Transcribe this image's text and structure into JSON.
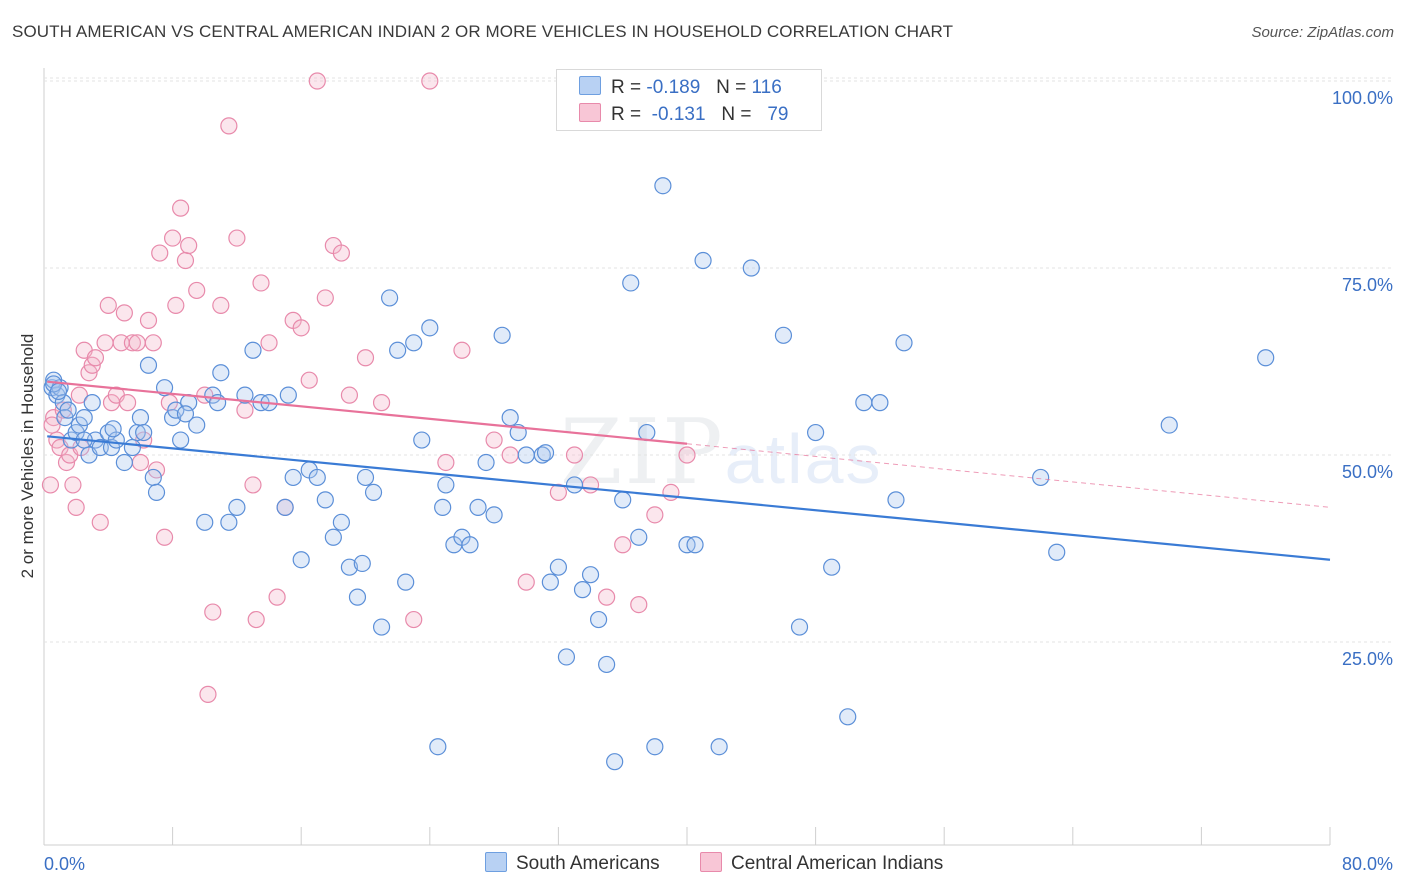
{
  "header": {
    "title": "SOUTH AMERICAN VS CENTRAL AMERICAN INDIAN 2 OR MORE VEHICLES IN HOUSEHOLD CORRELATION CHART",
    "source": "Source: ZipAtlas.com"
  },
  "watermark": {
    "zip": "ZIP",
    "atlas": "atlas"
  },
  "legend": {
    "rows": [
      {
        "r_label": "R =",
        "r_value": "-0.189",
        "n_label": "N =",
        "n_value": "116"
      },
      {
        "r_label": "R =",
        "r_value": "-0.131",
        "n_label": "N =",
        "n_value": "79"
      }
    ]
  },
  "chart_data": {
    "type": "scatter",
    "title": "SOUTH AMERICAN VS CENTRAL AMERICAN INDIAN 2 OR MORE VEHICLES IN HOUSEHOLD CORRELATION CHART",
    "xlabel": "",
    "ylabel": "2 or more Vehicles in Household",
    "xlim": [
      0,
      80
    ],
    "ylim": [
      0,
      103
    ],
    "x_tick_labels": [
      "0.0%",
      "80.0%"
    ],
    "y_tick_values": [
      25,
      50,
      75,
      100
    ],
    "y_tick_labels": [
      "25.0%",
      "50.0%",
      "75.0%",
      "100.0%"
    ],
    "grid": true,
    "legend_position": "top-center",
    "colors": {
      "blue": "#3a7bd5",
      "blue_fill": "#a9c7ee",
      "pink": "#e8729a",
      "pink_fill": "#f4b8cc",
      "tick_label": "#3a6fc4"
    },
    "series": [
      {
        "name": "South Americans",
        "r": -0.189,
        "n": 116,
        "trend": {
          "x": [
            0.2,
            80
          ],
          "y": [
            52.5,
            36.0
          ]
        },
        "points": [
          [
            0.5,
            59
          ],
          [
            0.6,
            60
          ],
          [
            0.8,
            58
          ],
          [
            1.0,
            59
          ],
          [
            1.2,
            57
          ],
          [
            1.3,
            55
          ],
          [
            1.5,
            56
          ],
          [
            1.7,
            52
          ],
          [
            2.0,
            53
          ],
          [
            2.2,
            54
          ],
          [
            2.5,
            55
          ],
          [
            2.8,
            50
          ],
          [
            3.0,
            57
          ],
          [
            3.2,
            52
          ],
          [
            3.5,
            51
          ],
          [
            4.0,
            53
          ],
          [
            4.2,
            51
          ],
          [
            4.5,
            52
          ],
          [
            5.0,
            49
          ],
          [
            5.5,
            51
          ],
          [
            5.8,
            53
          ],
          [
            6.0,
            55
          ],
          [
            6.5,
            62
          ],
          [
            6.8,
            47
          ],
          [
            7.0,
            45
          ],
          [
            7.5,
            59
          ],
          [
            8.0,
            55
          ],
          [
            8.2,
            56
          ],
          [
            8.5,
            52
          ],
          [
            9.0,
            57
          ],
          [
            9.5,
            54
          ],
          [
            10.0,
            41
          ],
          [
            10.5,
            58
          ],
          [
            10.8,
            57
          ],
          [
            11.0,
            61
          ],
          [
            11.5,
            41
          ],
          [
            12.0,
            43
          ],
          [
            12.5,
            58
          ],
          [
            13.0,
            64
          ],
          [
            13.5,
            57
          ],
          [
            14.0,
            57
          ],
          [
            15.0,
            43
          ],
          [
            15.5,
            47
          ],
          [
            16.0,
            36
          ],
          [
            16.5,
            48
          ],
          [
            17.0,
            47
          ],
          [
            17.5,
            44
          ],
          [
            18.0,
            39
          ],
          [
            18.5,
            41
          ],
          [
            19.0,
            35
          ],
          [
            19.5,
            31
          ],
          [
            20.0,
            47
          ],
          [
            20.5,
            45
          ],
          [
            21.0,
            27
          ],
          [
            21.5,
            71
          ],
          [
            22.0,
            64
          ],
          [
            22.5,
            33
          ],
          [
            23.0,
            65
          ],
          [
            23.5,
            52
          ],
          [
            24.0,
            67
          ],
          [
            24.5,
            11
          ],
          [
            25.0,
            46
          ],
          [
            25.5,
            38
          ],
          [
            26.0,
            39
          ],
          [
            26.5,
            38
          ],
          [
            27.0,
            43
          ],
          [
            27.5,
            49
          ],
          [
            28.0,
            42
          ],
          [
            28.5,
            66
          ],
          [
            29.0,
            55
          ],
          [
            29.5,
            53
          ],
          [
            30.0,
            50
          ],
          [
            31.0,
            50
          ],
          [
            31.5,
            33
          ],
          [
            32.0,
            35
          ],
          [
            32.5,
            23
          ],
          [
            33.0,
            46
          ],
          [
            33.5,
            32
          ],
          [
            34.0,
            34
          ],
          [
            34.5,
            28
          ],
          [
            35.0,
            22
          ],
          [
            35.5,
            9
          ],
          [
            36.0,
            44
          ],
          [
            36.5,
            73
          ],
          [
            37.0,
            39
          ],
          [
            37.5,
            53
          ],
          [
            38.0,
            11
          ],
          [
            38.5,
            86
          ],
          [
            40.0,
            38
          ],
          [
            40.5,
            38
          ],
          [
            41.0,
            76
          ],
          [
            42.0,
            11
          ],
          [
            44.0,
            75
          ],
          [
            46.0,
            66
          ],
          [
            47.0,
            27
          ],
          [
            48.0,
            53
          ],
          [
            49.0,
            35
          ],
          [
            50.0,
            15
          ],
          [
            51.0,
            57
          ],
          [
            52.0,
            57
          ],
          [
            53.0,
            44
          ],
          [
            53.5,
            65
          ],
          [
            62.0,
            47
          ],
          [
            63.0,
            37
          ],
          [
            70.0,
            54
          ],
          [
            76.0,
            63
          ],
          [
            2.5,
            52
          ],
          [
            6.2,
            53
          ],
          [
            15.2,
            58
          ],
          [
            24.8,
            43
          ],
          [
            0.6,
            59.5
          ],
          [
            0.9,
            58.5
          ],
          [
            4.3,
            53.5
          ],
          [
            8.8,
            55.5
          ],
          [
            19.8,
            35.5
          ],
          [
            31.2,
            50.3
          ]
        ]
      },
      {
        "name": "Central American Indians",
        "r": -0.131,
        "n": 79,
        "trend": {
          "x": [
            0.2,
            40
          ],
          "y": [
            59.8,
            51.5
          ]
        },
        "trend_dashed": {
          "x": [
            40,
            80
          ],
          "y": [
            51.5,
            43.0
          ]
        },
        "points": [
          [
            0.4,
            46
          ],
          [
            0.6,
            55
          ],
          [
            0.8,
            52
          ],
          [
            1.0,
            51
          ],
          [
            1.2,
            56
          ],
          [
            1.4,
            49
          ],
          [
            1.6,
            50
          ],
          [
            1.8,
            46
          ],
          [
            2.0,
            43
          ],
          [
            2.2,
            58
          ],
          [
            2.5,
            64
          ],
          [
            2.8,
            61
          ],
          [
            3.0,
            62
          ],
          [
            3.2,
            63
          ],
          [
            3.5,
            41
          ],
          [
            3.8,
            65
          ],
          [
            4.0,
            70
          ],
          [
            4.2,
            57
          ],
          [
            4.5,
            58
          ],
          [
            4.8,
            65
          ],
          [
            5.0,
            69
          ],
          [
            5.2,
            57
          ],
          [
            5.5,
            65
          ],
          [
            5.8,
            65
          ],
          [
            6.0,
            49
          ],
          [
            6.2,
            52
          ],
          [
            6.5,
            68
          ],
          [
            6.8,
            65
          ],
          [
            7.0,
            48
          ],
          [
            7.2,
            77
          ],
          [
            7.5,
            39
          ],
          [
            7.8,
            57
          ],
          [
            8.0,
            79
          ],
          [
            8.2,
            70
          ],
          [
            8.5,
            83
          ],
          [
            8.8,
            76
          ],
          [
            9.0,
            78
          ],
          [
            9.5,
            72
          ],
          [
            10.0,
            58
          ],
          [
            10.5,
            29
          ],
          [
            11.0,
            70
          ],
          [
            11.5,
            94
          ],
          [
            12.0,
            79
          ],
          [
            12.5,
            56
          ],
          [
            13.0,
            46
          ],
          [
            13.5,
            73
          ],
          [
            14.0,
            65
          ],
          [
            14.5,
            31
          ],
          [
            15.0,
            43
          ],
          [
            15.5,
            68
          ],
          [
            16.0,
            67
          ],
          [
            16.5,
            60
          ],
          [
            17.0,
            100
          ],
          [
            17.5,
            71
          ],
          [
            18.0,
            78
          ],
          [
            18.5,
            77
          ],
          [
            19.0,
            58
          ],
          [
            20.0,
            63
          ],
          [
            21.0,
            57
          ],
          [
            23.0,
            28
          ],
          [
            24.0,
            100
          ],
          [
            25.0,
            49
          ],
          [
            26.0,
            64
          ],
          [
            28.0,
            52
          ],
          [
            29.0,
            50
          ],
          [
            30.0,
            33
          ],
          [
            32.0,
            45
          ],
          [
            33.0,
            50
          ],
          [
            34.0,
            46
          ],
          [
            35.0,
            31
          ],
          [
            36.0,
            38
          ],
          [
            37.0,
            30
          ],
          [
            38.0,
            42
          ],
          [
            39.0,
            45
          ],
          [
            40.0,
            50
          ],
          [
            10.2,
            18
          ],
          [
            13.2,
            28
          ],
          [
            0.5,
            54
          ],
          [
            2.3,
            51
          ]
        ]
      }
    ]
  }
}
